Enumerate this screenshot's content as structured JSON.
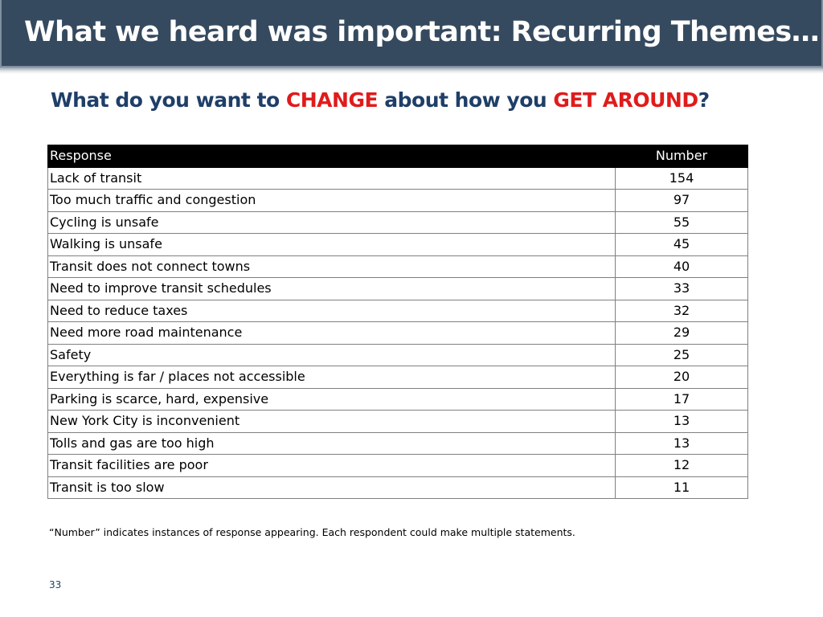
{
  "header": {
    "title": "What we heard was important: Recurring Themes…",
    "background": "#354a5f"
  },
  "question": {
    "part1": "What do you want to ",
    "part2": "CHANGE",
    "part3": " about how you ",
    "part4": "GET AROUND",
    "part5": "?",
    "color": "#1f3f68",
    "highlight_color": "#e01b1b"
  },
  "table": {
    "headers": {
      "response": "Response",
      "number": "Number"
    },
    "rows": [
      {
        "response": "Lack of transit",
        "number": "154"
      },
      {
        "response": "Too much traffic and congestion",
        "number": "97"
      },
      {
        "response": "Cycling is unsafe",
        "number": "55"
      },
      {
        "response": "Walking is unsafe",
        "number": "45"
      },
      {
        "response": "Transit does not connect towns",
        "number": "40"
      },
      {
        "response": "Need to improve transit schedules",
        "number": "33"
      },
      {
        "response": "Need to reduce taxes",
        "number": "32"
      },
      {
        "response": "Need more road maintenance",
        "number": "29"
      },
      {
        "response": "Safety",
        "number": "25"
      },
      {
        "response": "Everything is far / places not accessible",
        "number": "20"
      },
      {
        "response": "Parking is scarce, hard, expensive",
        "number": "17"
      },
      {
        "response": "New York City is inconvenient",
        "number": "13"
      },
      {
        "response": "Tolls and gas are too high",
        "number": "13"
      },
      {
        "response": "Transit facilities are poor",
        "number": "12"
      },
      {
        "response": "Transit is too slow",
        "number": "11"
      }
    ]
  },
  "footnote": "“Number” indicates instances of response appearing. Each respondent could make multiple statements.",
  "page_number": "33"
}
